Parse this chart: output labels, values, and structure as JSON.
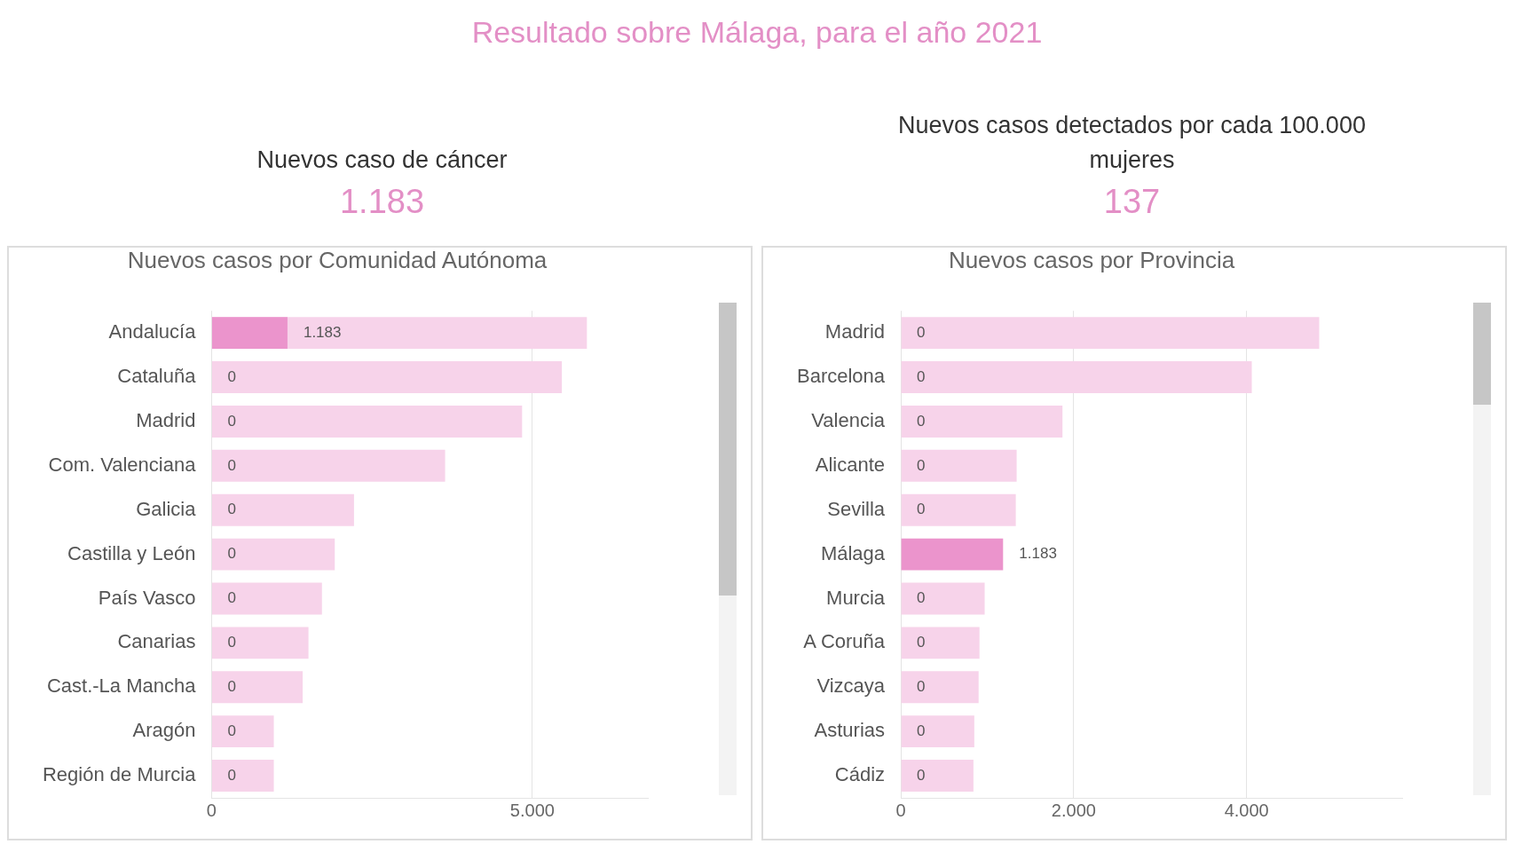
{
  "chart_data": [
    {
      "type": "other",
      "title": "Resultado sobre Málaga, para el año 2021"
    },
    {
      "type": "other",
      "title": "Nuevos caso de cáncer",
      "annotations": [
        "1.183"
      ]
    },
    {
      "type": "other",
      "title": "Nuevos casos detectados por cada 100.000 mujeres",
      "annotations": [
        "137"
      ]
    },
    {
      "type": "bar",
      "orientation": "horizontal",
      "title": "Nuevos casos por Comunidad Autónoma",
      "categories": [
        "Andalucía",
        "Cataluña",
        "Madrid",
        "Com. Valenciana",
        "Galicia",
        "Castilla y León",
        "País Vasco",
        "Canarias",
        "Cast.-La Mancha",
        "Aragón",
        "Región de Murcia"
      ],
      "series": [
        {
          "color": "#f7d3ea",
          "values": [
            5850,
            5460,
            4840,
            3640,
            2220,
            1920,
            1720,
            1510,
            1420,
            970,
            970
          ]
        },
        {
          "color": "#eb94cc",
          "values": [
            1183,
            0,
            0,
            0,
            0,
            0,
            0,
            0,
            0,
            0,
            0
          ],
          "value_labels": [
            "1.183",
            "0",
            "0",
            "0",
            "0",
            "0",
            "0",
            "0",
            "0",
            "0",
            "0"
          ]
        }
      ],
      "xlim": [
        0,
        6800
      ],
      "xticks": [
        0,
        {
          "value": 5000,
          "label": "5.000"
        }
      ],
      "grid": "x"
    },
    {
      "type": "bar",
      "orientation": "horizontal",
      "title": "Nuevos casos por Provincia",
      "categories": [
        "Madrid",
        "Barcelona",
        "Valencia",
        "Alicante",
        "Sevilla",
        "Málaga",
        "Murcia",
        "A Coruña",
        "Vizcaya",
        "Asturias",
        "Cádiz"
      ],
      "series": [
        {
          "color": "#f7d3ea",
          "values": [
            4840,
            4060,
            1870,
            1340,
            1330,
            null,
            970,
            910,
            900,
            850,
            840
          ]
        },
        {
          "color": "#eb94cc",
          "values": [
            0,
            0,
            0,
            0,
            0,
            1183,
            0,
            0,
            0,
            0,
            0
          ],
          "value_labels": [
            "0",
            "0",
            "0",
            "0",
            "0",
            "1.183",
            "0",
            "0",
            "0",
            "0",
            "0"
          ]
        }
      ],
      "xlim": [
        0,
        5800
      ],
      "xticks": [
        0,
        {
          "value": 2000,
          "label": "2.000"
        },
        {
          "value": 4000,
          "label": "4.000"
        }
      ],
      "grid": "x"
    }
  ]
}
